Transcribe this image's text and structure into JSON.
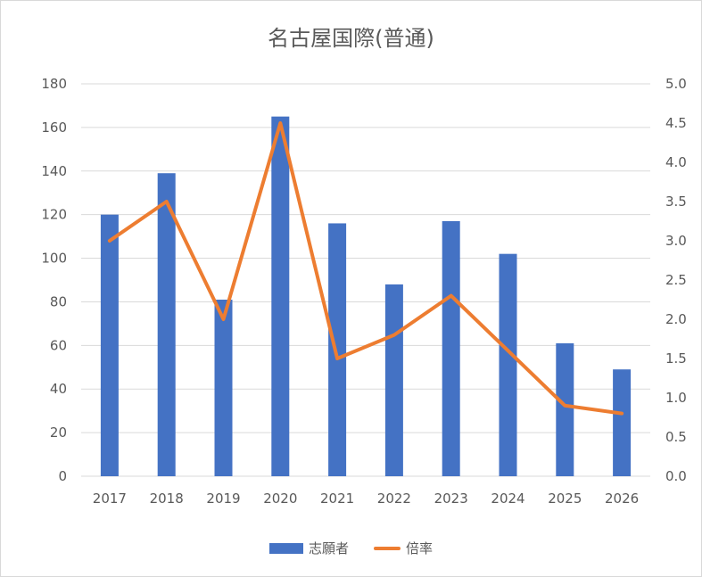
{
  "chart_data": {
    "type": "bar",
    "title": "名古屋国際(普通)",
    "categories": [
      "2017",
      "2018",
      "2019",
      "2020",
      "2021",
      "2022",
      "2023",
      "2024",
      "2025",
      "2026"
    ],
    "series": [
      {
        "name": "志願者",
        "type": "bar",
        "axis": "left",
        "color": "#4472C4",
        "values": [
          120,
          139,
          81,
          165,
          116,
          88,
          117,
          102,
          61,
          49
        ]
      },
      {
        "name": "倍率",
        "type": "line",
        "axis": "right",
        "color": "#ED7D31",
        "values": [
          3.0,
          3.5,
          2.0,
          4.5,
          1.5,
          1.8,
          2.3,
          1.6,
          0.9,
          0.8
        ]
      }
    ],
    "y_left": {
      "min": 0,
      "max": 180,
      "step": 20,
      "ticks": [
        "0",
        "20",
        "40",
        "60",
        "80",
        "100",
        "120",
        "140",
        "160",
        "180"
      ]
    },
    "y_right": {
      "min": 0,
      "max": 5,
      "step": 0.5,
      "ticks": [
        "0.0",
        "0.5",
        "1.0",
        "1.5",
        "2.0",
        "2.5",
        "3.0",
        "3.5",
        "4.0",
        "4.5",
        "5.0"
      ]
    },
    "grid": true,
    "legend_position": "bottom"
  }
}
